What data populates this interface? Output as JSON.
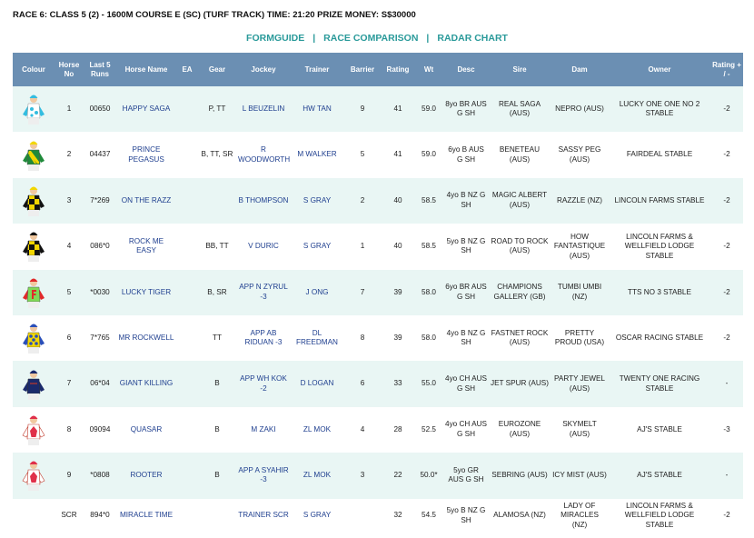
{
  "race_title": "RACE 6: CLASS 5 (2) - 1600M COURSE E (SC) (TURF TRACK) TIME: 21:20 PRIZE MONEY: S$30000",
  "nav": {
    "formguide": "FORMGUIDE",
    "race_comparison": "RACE COMPARISON",
    "radar_chart": "RADAR CHART",
    "separator": "|"
  },
  "headers": {
    "colour": "Colour",
    "horse_no": "Horse No",
    "last5": "Last 5 Runs",
    "horse_name": "Horse Name",
    "ea": "EA",
    "gear": "Gear",
    "jockey": "Jockey",
    "trainer": "Trainer",
    "barrier": "Barrier",
    "rating": "Rating",
    "wt": "Wt",
    "desc": "Desc",
    "sire": "Sire",
    "dam": "Dam",
    "owner": "Owner",
    "rating_change": "Rating + / -"
  },
  "rows": [
    {
      "no": "1",
      "last5": "00650",
      "horse": "HAPPY SAGA",
      "ea": "",
      "gear": "P, TT",
      "jockey": "L BEUZELIN",
      "trainer": "HW TAN",
      "barrier": "9",
      "rating": "41",
      "wt": "59.0",
      "desc": "8yo BR AUS G SH",
      "sire": "REAL SAGA (AUS)",
      "dam": "NEPRO (AUS)",
      "owner": "LUCKY ONE ONE NO 2 STABLE",
      "change": "-2",
      "silk": "silk-cyan-spots"
    },
    {
      "no": "2",
      "last5": "04437",
      "horse": "PRINCE PEGASUS",
      "ea": "",
      "gear": "B, TT, SR",
      "jockey": "R WOODWORTH",
      "trainer": "M WALKER",
      "barrier": "5",
      "rating": "41",
      "wt": "59.0",
      "desc": "6yo B AUS G SH",
      "sire": "BENETEAU (AUS)",
      "dam": "SASSY PEG (AUS)",
      "owner": "FAIRDEAL STABLE",
      "change": "-2",
      "silk": "silk-green-yellow-sash"
    },
    {
      "no": "3",
      "last5": "7*269",
      "horse": "ON THE RAZZ",
      "ea": "",
      "gear": "",
      "jockey": "B THOMPSON",
      "trainer": "S GRAY",
      "barrier": "2",
      "rating": "40",
      "wt": "58.5",
      "desc": "4yo B NZ G SH",
      "sire": "MAGIC ALBERT (AUS)",
      "dam": "RAZZLE (NZ)",
      "owner": "LINCOLN FARMS STABLE",
      "change": "-2",
      "silk": "silk-black-yellow-check"
    },
    {
      "no": "4",
      "last5": "086*0",
      "horse": "ROCK ME EASY",
      "ea": "",
      "gear": "BB, TT",
      "jockey": "V DURIC",
      "trainer": "S GRAY",
      "barrier": "1",
      "rating": "40",
      "wt": "58.5",
      "desc": "5yo B NZ G SH",
      "sire": "ROAD TO ROCK (AUS)",
      "dam": "HOW FANTASTIQUE (AUS)",
      "owner": "LINCOLN FARMS & WELLFIELD LODGE STABLE",
      "change": "-2",
      "silk": "silk-black-yellow-check"
    },
    {
      "no": "5",
      "last5": "*0030",
      "horse": "LUCKY TIGER",
      "ea": "",
      "gear": "B, SR",
      "jockey": "APP N ZYRUL -3",
      "trainer": "J ONG",
      "barrier": "7",
      "rating": "39",
      "wt": "58.0",
      "desc": "6yo BR AUS G SH",
      "sire": "CHAMPIONS GALLERY (GB)",
      "dam": "TUMBI UMBI (NZ)",
      "owner": "TTS NO 3 STABLE",
      "change": "-2",
      "silk": "silk-green-f"
    },
    {
      "no": "6",
      "last5": "7*765",
      "horse": "MR ROCKWELL",
      "ea": "",
      "gear": "TT",
      "jockey": "APP AB RIDUAN -3",
      "trainer": "DL FREEDMAN",
      "barrier": "8",
      "rating": "39",
      "wt": "58.0",
      "desc": "4yo B NZ G SH",
      "sire": "FASTNET ROCK (AUS)",
      "dam": "PRETTY PROUD (USA)",
      "owner": "OSCAR RACING STABLE",
      "change": "-2",
      "silk": "silk-yellow-blue-spots"
    },
    {
      "no": "7",
      "last5": "06*04",
      "horse": "GIANT KILLING",
      "ea": "",
      "gear": "B",
      "jockey": "APP WH KOK -2",
      "trainer": "D LOGAN",
      "barrier": "6",
      "rating": "33",
      "wt": "55.0",
      "desc": "4yo CH AUS G SH",
      "sire": "JET SPUR (AUS)",
      "dam": "PARTY JEWEL (AUS)",
      "owner": "TWENTY ONE RACING STABLE",
      "change": "-",
      "silk": "silk-navy"
    },
    {
      "no": "8",
      "last5": "09094",
      "horse": "QUASAR",
      "ea": "",
      "gear": "B",
      "jockey": "M ZAKI",
      "trainer": "ZL MOK",
      "barrier": "4",
      "rating": "28",
      "wt": "52.5",
      "desc": "4yo CH AUS G SH",
      "sire": "EUROZONE (AUS)",
      "dam": "SKYMELT (AUS)",
      "owner": "AJ'S STABLE",
      "change": "-3",
      "silk": "silk-white-red"
    },
    {
      "no": "9",
      "last5": "*0808",
      "horse": "ROOTER",
      "ea": "",
      "gear": "B",
      "jockey": "APP A SYAHIR -3",
      "trainer": "ZL MOK",
      "barrier": "3",
      "rating": "22",
      "wt": "50.0*",
      "desc": "5yo GR AUS G SH",
      "sire": "SEBRING (AUS)",
      "dam": "ICY MIST (AUS)",
      "owner": "AJ'S STABLE",
      "change": "-",
      "silk": "silk-white-red"
    },
    {
      "no": "SCR",
      "last5": "894*0",
      "horse": "MIRACLE TIME",
      "ea": "",
      "gear": "",
      "jockey": "TRAINER SCR",
      "trainer": "S GRAY",
      "barrier": "",
      "rating": "32",
      "wt": "54.5",
      "desc": "5yo B NZ G SH",
      "sire": "ALAMOSA (NZ)",
      "dam": "LADY OF MIRACLES (NZ)",
      "owner": "LINCOLN FARMS & WELLFIELD LODGE STABLE",
      "change": "-2",
      "silk": ""
    }
  ],
  "colors": {
    "header_bg": "#6b8fb3",
    "row_alt": "#e9f6f4",
    "nav_link": "#2a9a9a",
    "link_text": "#1f3f8f"
  }
}
